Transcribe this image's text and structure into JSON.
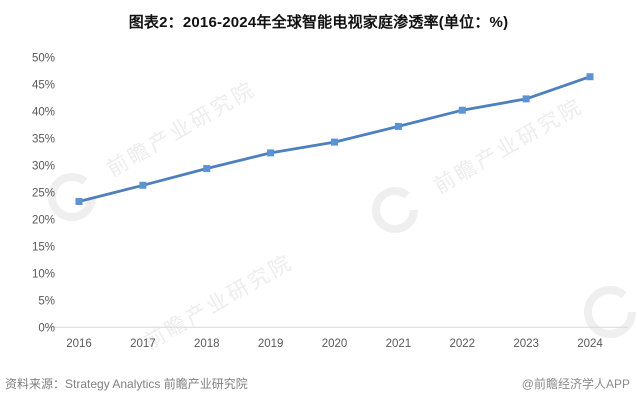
{
  "chart_data": {
    "type": "line",
    "title": "图表2：2016-2024年全球智能电视家庭渗透率(单位：%)",
    "categories": [
      "2016",
      "2017",
      "2018",
      "2019",
      "2020",
      "2021",
      "2022",
      "2023",
      "2024"
    ],
    "values": [
      23.3,
      26.3,
      29.4,
      32.3,
      34.3,
      37.2,
      40.2,
      42.3,
      46.4
    ],
    "xlabel": "",
    "ylabel": "",
    "ylim": [
      0,
      50
    ],
    "yticks": [
      "0%",
      "5%",
      "10%",
      "15%",
      "20%",
      "25%",
      "30%",
      "35%",
      "40%",
      "45%",
      "50%"
    ],
    "ytick_step": 5,
    "grid": false,
    "legend_position": "none",
    "marker_shape": "square"
  },
  "footer": {
    "source": "资料来源：Strategy Analytics 前瞻产业研究院",
    "credit": "@前瞻经济学人APP"
  },
  "watermark": {
    "text": "前瞻产业研究院"
  },
  "colors": {
    "line": "#4e7fbe",
    "marker": "#5d93d1",
    "axis_label": "#595959",
    "axis_line": "#d9d9d9",
    "title": "#111111",
    "footer": "#808080",
    "watermark": "#e9e9e9",
    "background": "#ffffff"
  }
}
